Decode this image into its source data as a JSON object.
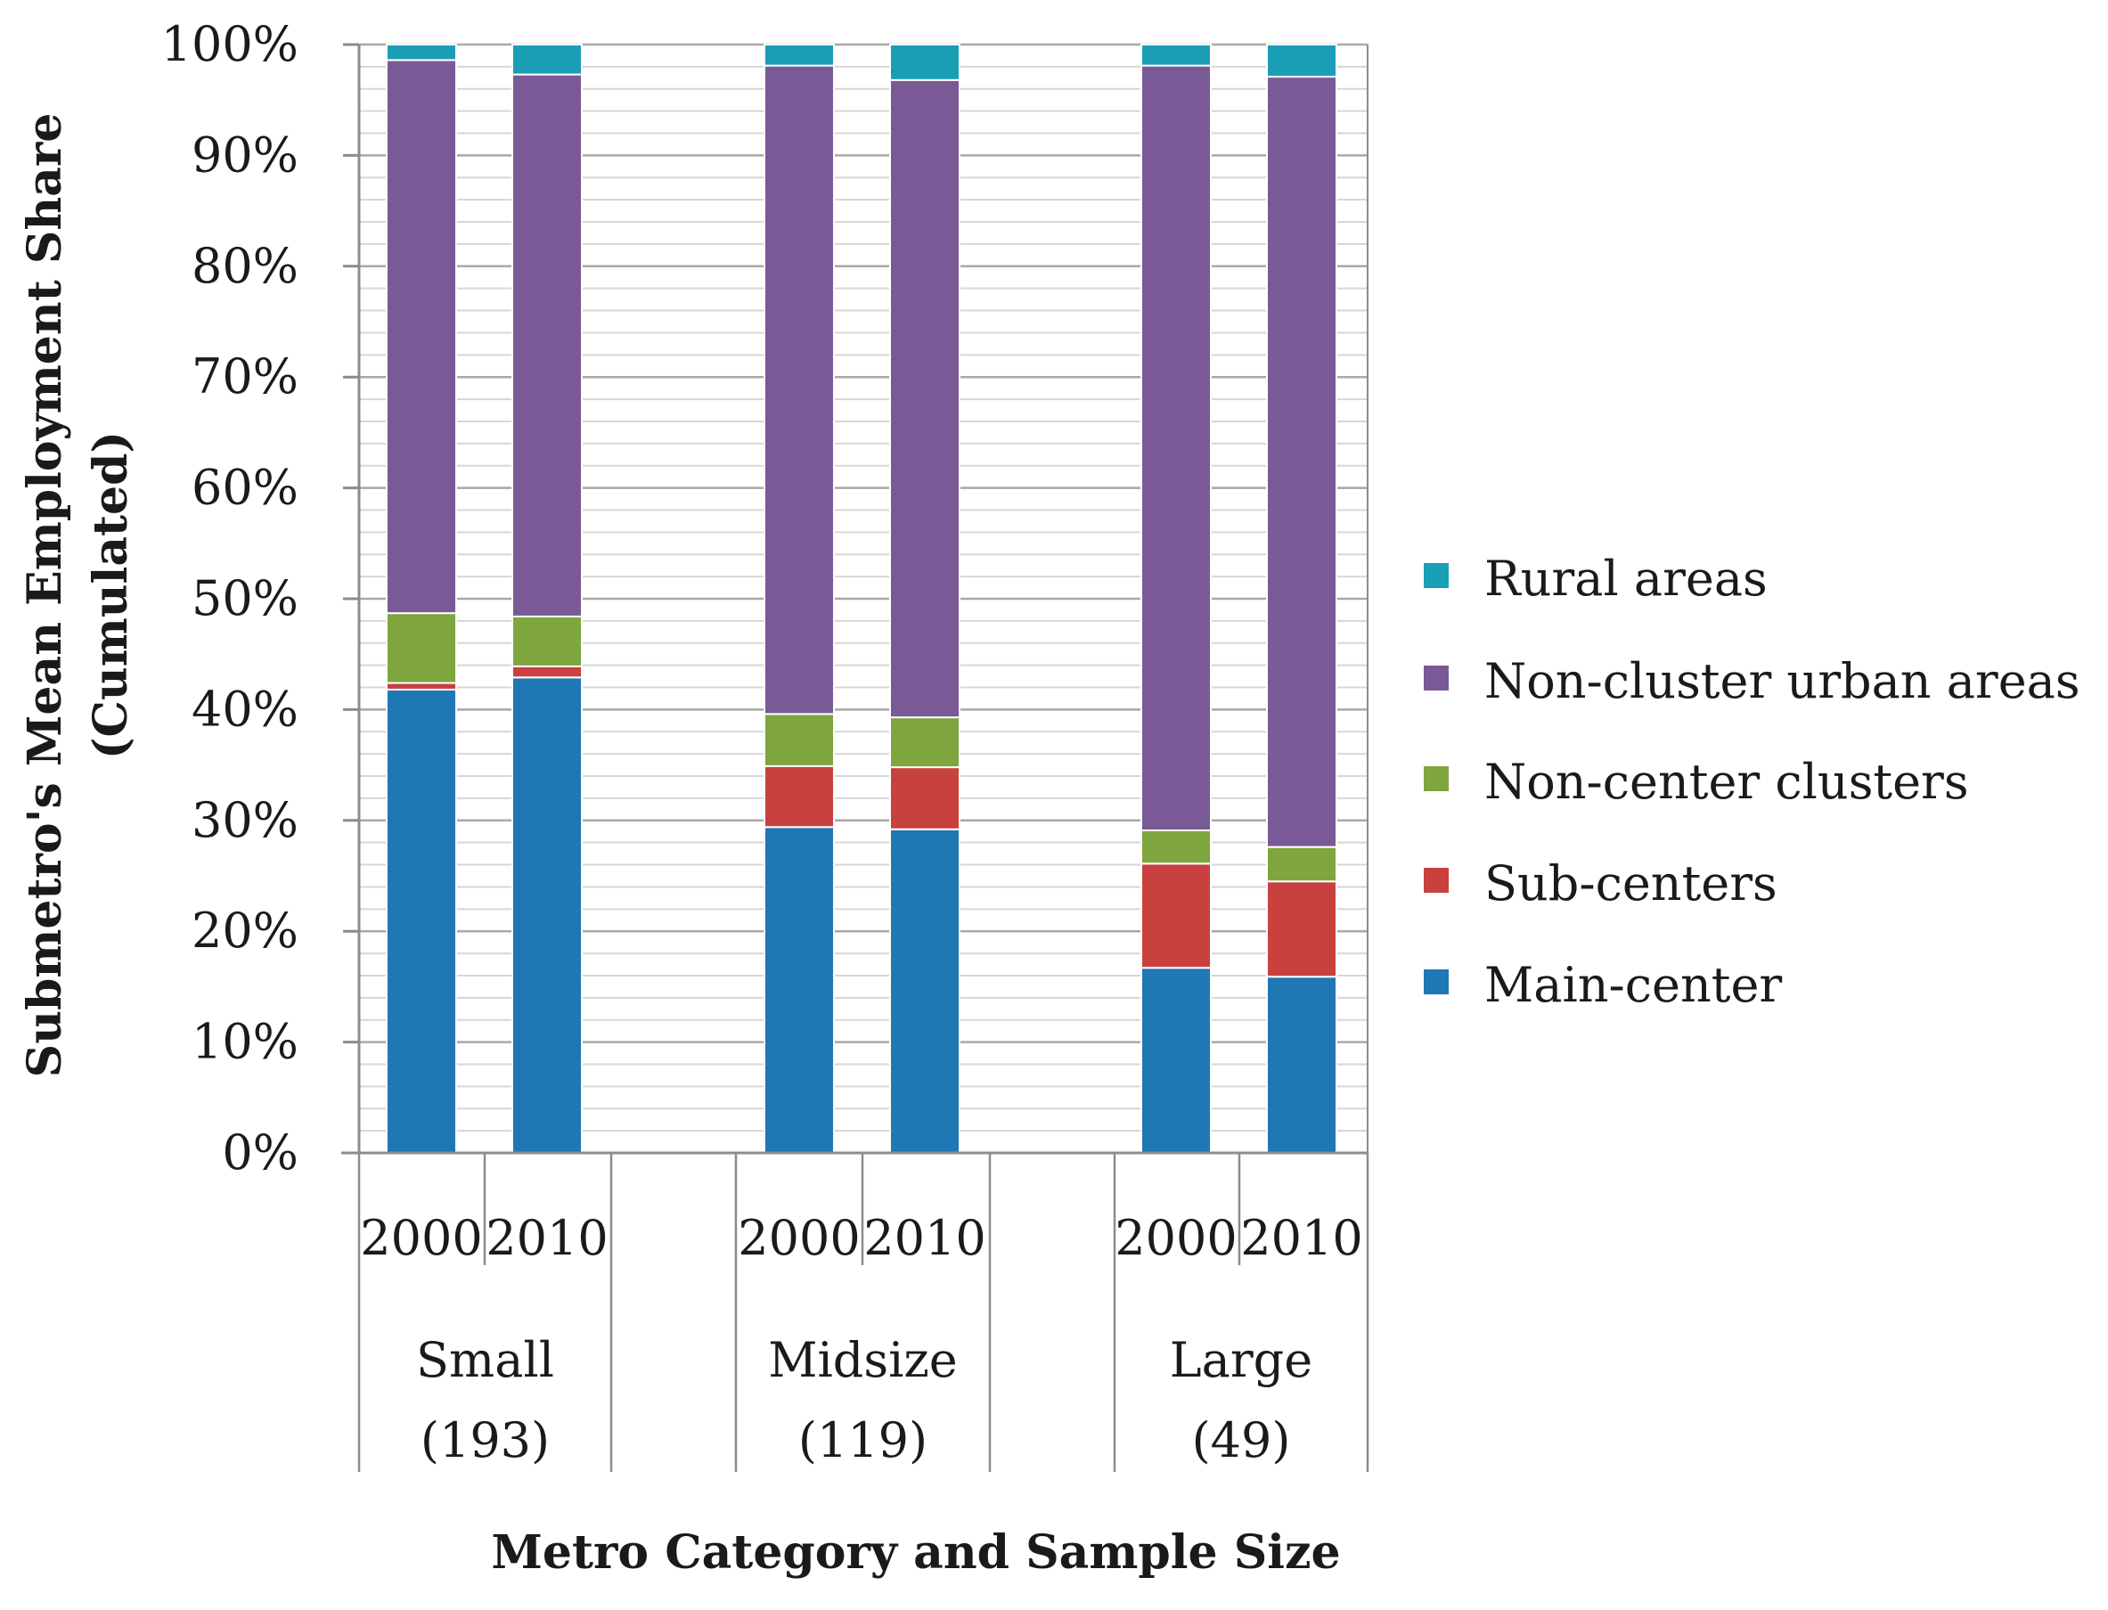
{
  "chart_data": {
    "type": "stacked-bar-100",
    "title": "",
    "ylabel_line1": "Submetro's Mean Employment Share",
    "ylabel_line2": "(Cumulated)",
    "xlabel": "Metro Category and Sample Size",
    "ylim": [
      0,
      100
    ],
    "yticks": [
      "0%",
      "10%",
      "20%",
      "30%",
      "40%",
      "50%",
      "60%",
      "70%",
      "80%",
      "90%",
      "100%"
    ],
    "groups": [
      {
        "label": "Small",
        "sample": "(193)",
        "years": [
          "2000",
          "2010"
        ]
      },
      {
        "label": "Midsize",
        "sample": "(119)",
        "years": [
          "2000",
          "2010"
        ]
      },
      {
        "label": "Large",
        "sample": "(49)",
        "years": [
          "2000",
          "2010"
        ]
      }
    ],
    "series": [
      {
        "name": "Main-center",
        "color": "#1f77b4",
        "values": [
          41.8,
          42.9,
          29.4,
          29.2,
          16.7,
          15.9
        ]
      },
      {
        "name": "Sub-centers",
        "color": "#c9413f",
        "values": [
          0.6,
          1.0,
          5.5,
          5.6,
          9.4,
          8.6
        ]
      },
      {
        "name": "Non-center clusters",
        "color": "#7ea53e",
        "values": [
          6.3,
          4.5,
          4.7,
          4.5,
          3.0,
          3.1
        ]
      },
      {
        "name": "Non-cluster urban areas",
        "color": "#7a5a96",
        "values": [
          49.9,
          48.9,
          58.5,
          57.5,
          69.0,
          69.5
        ]
      },
      {
        "name": "Rural areas",
        "color": "#1a9eb5",
        "values": [
          1.4,
          2.7,
          1.9,
          3.2,
          1.9,
          2.9
        ]
      }
    ],
    "legend_position": "right",
    "legend_order": [
      "Rural areas",
      "Non-cluster urban areas",
      "Non-center clusters",
      "Sub-centers",
      "Main-center"
    ]
  }
}
